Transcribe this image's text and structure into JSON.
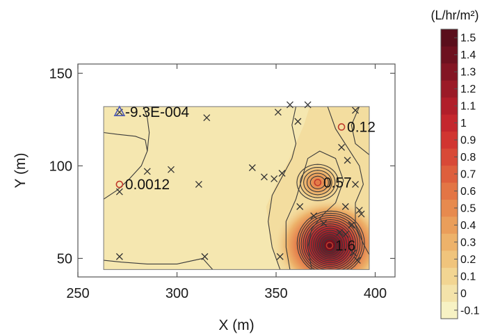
{
  "chart_data": {
    "type": "contour",
    "xlabel": "X (m)",
    "ylabel": "Y (m)",
    "xlim": [
      250,
      410
    ],
    "ylim": [
      40,
      155
    ],
    "xticks": [
      250,
      300,
      350,
      400
    ],
    "yticks": [
      50,
      100,
      150
    ],
    "grid": false,
    "domain": {
      "x": [
        263,
        397
      ],
      "y": [
        44,
        132
      ]
    },
    "colorbar": {
      "title": "(L/hr/m²)",
      "levels": [
        -0.1,
        0,
        0.1,
        0.2,
        0.3,
        0.4,
        0.5,
        0.6,
        0.7,
        0.8,
        0.9,
        1,
        1.1,
        1.2,
        1.3,
        1.4,
        1.5
      ],
      "labels": [
        "-0.1",
        "0",
        "0.1",
        "0.2",
        "0.3",
        "0.4",
        "0.5",
        "0.6",
        "0.7",
        "0.8",
        "0.9",
        "1",
        "1.1",
        "1.2",
        "1.3",
        "1.4",
        "1.5"
      ],
      "colors": [
        "#f7f2c4",
        "#f4e3aa",
        "#f2d592",
        "#f0c47c",
        "#edb26a",
        "#ea9e5a",
        "#e78a4e",
        "#e37545",
        "#de5f3d",
        "#d84937",
        "#d13531",
        "#c4262d",
        "#b11e2a",
        "#9b1a27",
        "#831523",
        "#6d111f",
        "#5a0e1b"
      ],
      "position": "right"
    },
    "peaks": [
      {
        "x": 377,
        "y": 57,
        "value": 1.6,
        "label": "1.6"
      },
      {
        "x": 371,
        "y": 91,
        "value": 0.57,
        "label": "0.57"
      },
      {
        "x": 271,
        "y": 90,
        "value": 0.0012,
        "label": "0.0012"
      },
      {
        "x": 383,
        "y": 121,
        "value": 0.12,
        "label": "0.12"
      },
      {
        "x": 271,
        "y": 129,
        "value": -0.00093,
        "label": "-9.3E-004"
      }
    ],
    "sample_points": [
      [
        271,
        129
      ],
      [
        315,
        126
      ],
      [
        271,
        86
      ],
      [
        285,
        97
      ],
      [
        297,
        98
      ],
      [
        311,
        90
      ],
      [
        271,
        51
      ],
      [
        314,
        51
      ],
      [
        338,
        99
      ],
      [
        344,
        94
      ],
      [
        349,
        93
      ],
      [
        353,
        96
      ],
      [
        351,
        129
      ],
      [
        357,
        133
      ],
      [
        361,
        124
      ],
      [
        366,
        133
      ],
      [
        383,
        110
      ],
      [
        390,
        130
      ],
      [
        386,
        103
      ],
      [
        390,
        90
      ],
      [
        385,
        78
      ],
      [
        392,
        76
      ],
      [
        393,
        74
      ],
      [
        388,
        68
      ],
      [
        385,
        63
      ],
      [
        374,
        69
      ],
      [
        369,
        73
      ],
      [
        362,
        78
      ],
      [
        352,
        51
      ],
      [
        389,
        53
      ],
      [
        391,
        49
      ],
      [
        382,
        64
      ]
    ]
  }
}
